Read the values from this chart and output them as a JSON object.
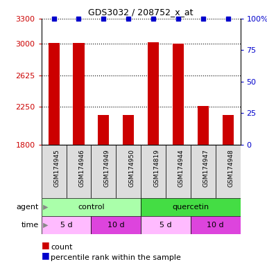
{
  "title": "GDS3032 / 208752_x_at",
  "samples": [
    "GSM174945",
    "GSM174946",
    "GSM174949",
    "GSM174950",
    "GSM174819",
    "GSM174944",
    "GSM174947",
    "GSM174948"
  ],
  "bar_values": [
    3010,
    3010,
    2155,
    2150,
    3020,
    3000,
    2260,
    2150
  ],
  "percentile_values": [
    100,
    100,
    100,
    100,
    100,
    100,
    100,
    100
  ],
  "bar_color": "#cc0000",
  "percentile_color": "#0000cc",
  "ymin": 1800,
  "ymax": 3300,
  "yticks": [
    1800,
    2250,
    2625,
    3000,
    3300
  ],
  "ytick_labels": [
    "1800",
    "2250",
    "2625",
    "3000",
    "3300"
  ],
  "y2ticks": [
    0,
    25,
    50,
    75,
    100
  ],
  "y2tick_labels": [
    "0",
    "25",
    "50",
    "75",
    "100%"
  ],
  "agent_labels": [
    {
      "label": "control",
      "start": 0,
      "end": 4,
      "color": "#aaffaa"
    },
    {
      "label": "quercetin",
      "start": 4,
      "end": 8,
      "color": "#44dd44"
    }
  ],
  "time_labels": [
    {
      "label": "5 d",
      "start": 0,
      "end": 2,
      "color": "#ffbbff"
    },
    {
      "label": "10 d",
      "start": 2,
      "end": 4,
      "color": "#dd44dd"
    },
    {
      "label": "5 d",
      "start": 4,
      "end": 6,
      "color": "#ffbbff"
    },
    {
      "label": "10 d",
      "start": 6,
      "end": 8,
      "color": "#dd44dd"
    }
  ],
  "bar_color_label": "count",
  "percentile_color_label": "percentile rank within the sample",
  "ylabel_color": "#cc0000",
  "y2label_color": "#0000cc",
  "grid_linestyle": "dotted",
  "bar_width": 0.45,
  "sample_box_color": "#dddddd",
  "left_label_color": "#555555",
  "arrow_color": "#888888"
}
